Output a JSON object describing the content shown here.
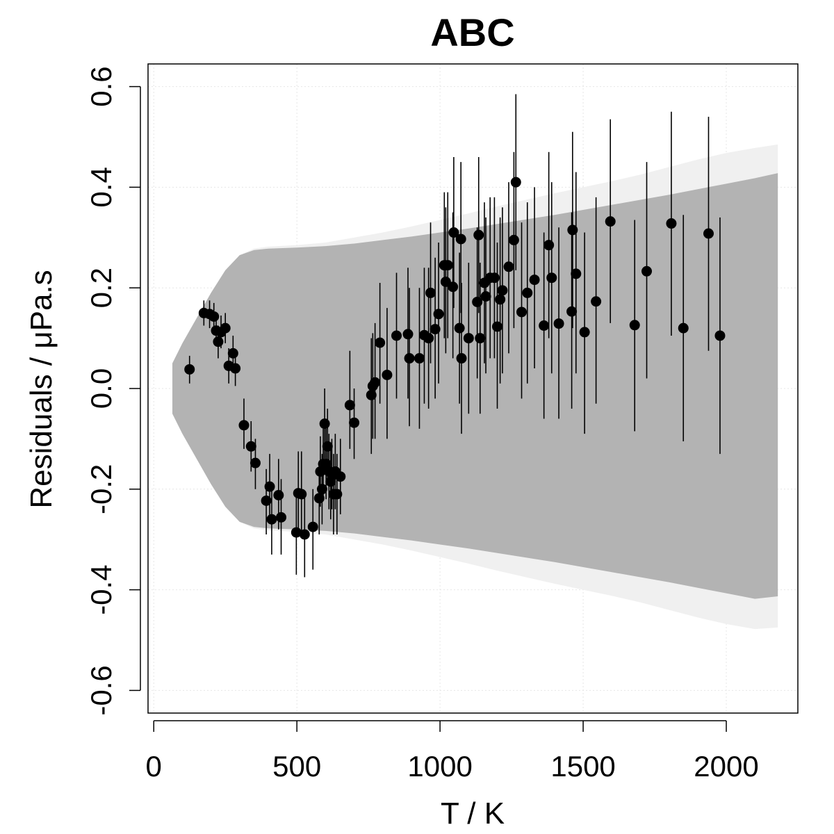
{
  "chart_data": {
    "type": "scatter",
    "title": "ABC",
    "xlabel": "T / K",
    "ylabel": "Residuals / μPa.s",
    "xlim": [
      -20,
      2250
    ],
    "ylim": [
      -0.645,
      0.645
    ],
    "x_ticks": [
      0,
      500,
      1000,
      1500,
      2000
    ],
    "x_tick_labels": [
      "0",
      "500",
      "1000",
      "1500",
      "2000"
    ],
    "y_ticks": [
      -0.6,
      -0.4,
      -0.2,
      0.0,
      0.2,
      0.4,
      0.6
    ],
    "y_tick_labels": [
      "-0.6",
      "-0.4",
      "-0.2",
      "0.0",
      "0.2",
      "0.4",
      "0.6"
    ],
    "grid": true,
    "colors": {
      "inner_band": "#b3b3b3",
      "outer_band": "#f0f0f0",
      "points": "#000000",
      "grid": "#e6e6e6"
    },
    "bands": {
      "x": [
        65,
        100,
        150,
        200,
        250,
        300,
        350,
        400,
        500,
        600,
        700,
        800,
        900,
        1000,
        1100,
        1200,
        1300,
        1400,
        1500,
        1600,
        1700,
        1800,
        1900,
        2000,
        2100,
        2180
      ],
      "inner_upper": [
        0.05,
        0.09,
        0.14,
        0.19,
        0.235,
        0.265,
        0.275,
        0.278,
        0.28,
        0.283,
        0.288,
        0.295,
        0.302,
        0.31,
        0.318,
        0.327,
        0.336,
        0.345,
        0.355,
        0.365,
        0.375,
        0.385,
        0.396,
        0.407,
        0.418,
        0.428
      ],
      "inner_lower": [
        -0.05,
        -0.09,
        -0.14,
        -0.19,
        -0.235,
        -0.265,
        -0.275,
        -0.278,
        -0.28,
        -0.283,
        -0.288,
        -0.295,
        -0.302,
        -0.31,
        -0.318,
        -0.327,
        -0.336,
        -0.345,
        -0.355,
        -0.365,
        -0.375,
        -0.385,
        -0.396,
        -0.407,
        -0.418,
        -0.413
      ],
      "outer_upper": [
        0.05,
        0.09,
        0.14,
        0.19,
        0.235,
        0.265,
        0.278,
        0.282,
        0.285,
        0.29,
        0.3,
        0.31,
        0.322,
        0.335,
        0.348,
        0.362,
        0.375,
        0.388,
        0.4,
        0.412,
        0.425,
        0.44,
        0.455,
        0.468,
        0.478,
        0.485
      ],
      "outer_lower": [
        -0.05,
        -0.09,
        -0.14,
        -0.19,
        -0.235,
        -0.265,
        -0.278,
        -0.282,
        -0.285,
        -0.29,
        -0.3,
        -0.31,
        -0.322,
        -0.335,
        -0.348,
        -0.362,
        -0.375,
        -0.388,
        -0.4,
        -0.412,
        -0.425,
        -0.44,
        -0.455,
        -0.468,
        -0.478,
        -0.475
      ]
    },
    "points": [
      {
        "x": 125,
        "y": 0.038,
        "ymin": 0.01,
        "ymax": 0.065
      },
      {
        "x": 175,
        "y": 0.15,
        "ymin": 0.125,
        "ymax": 0.175
      },
      {
        "x": 195,
        "y": 0.148,
        "ymin": 0.12,
        "ymax": 0.175
      },
      {
        "x": 210,
        "y": 0.143,
        "ymin": 0.115,
        "ymax": 0.17
      },
      {
        "x": 218,
        "y": 0.115,
        "ymin": 0.085,
        "ymax": 0.145
      },
      {
        "x": 225,
        "y": 0.093,
        "ymin": 0.06,
        "ymax": 0.125
      },
      {
        "x": 235,
        "y": 0.112,
        "ymin": 0.08,
        "ymax": 0.145
      },
      {
        "x": 250,
        "y": 0.12,
        "ymin": 0.09,
        "ymax": 0.15
      },
      {
        "x": 262,
        "y": 0.045,
        "ymin": 0.01,
        "ymax": 0.08
      },
      {
        "x": 277,
        "y": 0.07,
        "ymin": 0.035,
        "ymax": 0.105
      },
      {
        "x": 285,
        "y": 0.04,
        "ymin": 0.005,
        "ymax": 0.075
      },
      {
        "x": 315,
        "y": -0.073,
        "ymin": -0.12,
        "ymax": -0.02
      },
      {
        "x": 340,
        "y": -0.115,
        "ymin": -0.165,
        "ymax": -0.065
      },
      {
        "x": 355,
        "y": -0.148,
        "ymin": -0.2,
        "ymax": -0.1
      },
      {
        "x": 393,
        "y": -0.223,
        "ymin": -0.29,
        "ymax": -0.16
      },
      {
        "x": 405,
        "y": -0.195,
        "ymin": -0.26,
        "ymax": -0.13
      },
      {
        "x": 412,
        "y": -0.26,
        "ymin": -0.33,
        "ymax": -0.19
      },
      {
        "x": 436,
        "y": -0.212,
        "ymin": -0.28,
        "ymax": -0.14
      },
      {
        "x": 445,
        "y": -0.256,
        "ymin": -0.33,
        "ymax": -0.18
      },
      {
        "x": 498,
        "y": -0.286,
        "ymin": -0.37,
        "ymax": -0.21
      },
      {
        "x": 505,
        "y": -0.208,
        "ymin": -0.29,
        "ymax": -0.125
      },
      {
        "x": 516,
        "y": -0.21,
        "ymin": -0.29,
        "ymax": -0.125
      },
      {
        "x": 527,
        "y": -0.29,
        "ymin": -0.375,
        "ymax": -0.21
      },
      {
        "x": 556,
        "y": -0.275,
        "ymin": -0.36,
        "ymax": -0.2
      },
      {
        "x": 578,
        "y": -0.218,
        "ymin": -0.29,
        "ymax": -0.15
      },
      {
        "x": 582,
        "y": -0.165,
        "ymin": -0.235,
        "ymax": -0.095
      },
      {
        "x": 588,
        "y": -0.2,
        "ymin": -0.27,
        "ymax": -0.13
      },
      {
        "x": 592,
        "y": -0.15,
        "ymin": -0.22,
        "ymax": -0.08
      },
      {
        "x": 597,
        "y": -0.07,
        "ymin": -0.14,
        "ymax": 0.0
      },
      {
        "x": 602,
        "y": -0.15,
        "ymin": -0.22,
        "ymax": -0.08
      },
      {
        "x": 607,
        "y": -0.115,
        "ymin": -0.19,
        "ymax": -0.04
      },
      {
        "x": 612,
        "y": -0.165,
        "ymin": -0.24,
        "ymax": -0.09
      },
      {
        "x": 618,
        "y": -0.185,
        "ymin": -0.26,
        "ymax": -0.11
      },
      {
        "x": 622,
        "y": -0.17,
        "ymin": -0.24,
        "ymax": -0.1
      },
      {
        "x": 628,
        "y": -0.21,
        "ymin": -0.29,
        "ymax": -0.13
      },
      {
        "x": 634,
        "y": -0.165,
        "ymin": -0.24,
        "ymax": -0.09
      },
      {
        "x": 640,
        "y": -0.21,
        "ymin": -0.29,
        "ymax": -0.13
      },
      {
        "x": 652,
        "y": -0.175,
        "ymin": -0.25,
        "ymax": -0.1
      },
      {
        "x": 685,
        "y": -0.033,
        "ymin": -0.12,
        "ymax": 0.075
      },
      {
        "x": 700,
        "y": -0.068,
        "ymin": -0.14,
        "ymax": 0.0
      },
      {
        "x": 760,
        "y": -0.013,
        "ymin": -0.13,
        "ymax": 0.1
      },
      {
        "x": 765,
        "y": 0.005,
        "ymin": -0.1,
        "ymax": 0.11
      },
      {
        "x": 773,
        "y": 0.012,
        "ymin": -0.1,
        "ymax": 0.13
      },
      {
        "x": 790,
        "y": 0.091,
        "ymin": -0.03,
        "ymax": 0.21
      },
      {
        "x": 815,
        "y": 0.027,
        "ymin": -0.1,
        "ymax": 0.16
      },
      {
        "x": 848,
        "y": 0.105,
        "ymin": -0.02,
        "ymax": 0.23
      },
      {
        "x": 888,
        "y": 0.108,
        "ymin": -0.02,
        "ymax": 0.24
      },
      {
        "x": 893,
        "y": 0.06,
        "ymin": -0.075,
        "ymax": 0.2
      },
      {
        "x": 928,
        "y": 0.06,
        "ymin": -0.08,
        "ymax": 0.2
      },
      {
        "x": 945,
        "y": 0.106,
        "ymin": -0.03,
        "ymax": 0.24
      },
      {
        "x": 960,
        "y": 0.1,
        "ymin": -0.04,
        "ymax": 0.24
      },
      {
        "x": 967,
        "y": 0.19,
        "ymin": 0.05,
        "ymax": 0.33
      },
      {
        "x": 983,
        "y": 0.118,
        "ymin": -0.02,
        "ymax": 0.26
      },
      {
        "x": 995,
        "y": 0.148,
        "ymin": 0.01,
        "ymax": 0.29
      },
      {
        "x": 1015,
        "y": 0.245,
        "ymin": 0.1,
        "ymax": 0.39
      },
      {
        "x": 1020,
        "y": 0.212,
        "ymin": 0.07,
        "ymax": 0.36
      },
      {
        "x": 1027,
        "y": 0.245,
        "ymin": 0.1,
        "ymax": 0.39
      },
      {
        "x": 1045,
        "y": 0.202,
        "ymin": 0.06,
        "ymax": 0.35
      },
      {
        "x": 1048,
        "y": 0.31,
        "ymin": 0.16,
        "ymax": 0.46
      },
      {
        "x": 1068,
        "y": 0.12,
        "ymin": -0.03,
        "ymax": 0.27
      },
      {
        "x": 1073,
        "y": 0.297,
        "ymin": 0.15,
        "ymax": 0.45
      },
      {
        "x": 1075,
        "y": 0.06,
        "ymin": -0.09,
        "ymax": 0.21
      },
      {
        "x": 1100,
        "y": 0.1,
        "ymin": -0.05,
        "ymax": 0.25
      },
      {
        "x": 1130,
        "y": 0.172,
        "ymin": 0.02,
        "ymax": 0.32
      },
      {
        "x": 1135,
        "y": 0.305,
        "ymin": 0.15,
        "ymax": 0.46
      },
      {
        "x": 1140,
        "y": 0.1,
        "ymin": -0.05,
        "ymax": 0.25
      },
      {
        "x": 1155,
        "y": 0.21,
        "ymin": 0.05,
        "ymax": 0.37
      },
      {
        "x": 1160,
        "y": 0.183,
        "ymin": 0.03,
        "ymax": 0.34
      },
      {
        "x": 1175,
        "y": 0.22,
        "ymin": 0.06,
        "ymax": 0.38
      },
      {
        "x": 1190,
        "y": 0.22,
        "ymin": 0.06,
        "ymax": 0.38
      },
      {
        "x": 1200,
        "y": 0.123,
        "ymin": -0.04,
        "ymax": 0.29
      },
      {
        "x": 1210,
        "y": 0.177,
        "ymin": 0.01,
        "ymax": 0.34
      },
      {
        "x": 1218,
        "y": 0.195,
        "ymin": 0.03,
        "ymax": 0.36
      },
      {
        "x": 1240,
        "y": 0.242,
        "ymin": 0.07,
        "ymax": 0.41
      },
      {
        "x": 1258,
        "y": 0.295,
        "ymin": 0.12,
        "ymax": 0.47
      },
      {
        "x": 1265,
        "y": 0.41,
        "ymin": 0.235,
        "ymax": 0.585
      },
      {
        "x": 1285,
        "y": 0.152,
        "ymin": -0.02,
        "ymax": 0.33
      },
      {
        "x": 1305,
        "y": 0.19,
        "ymin": 0.01,
        "ymax": 0.37
      },
      {
        "x": 1330,
        "y": 0.216,
        "ymin": 0.04,
        "ymax": 0.4
      },
      {
        "x": 1363,
        "y": 0.125,
        "ymin": -0.06,
        "ymax": 0.31
      },
      {
        "x": 1380,
        "y": 0.285,
        "ymin": 0.1,
        "ymax": 0.47
      },
      {
        "x": 1390,
        "y": 0.22,
        "ymin": 0.03,
        "ymax": 0.41
      },
      {
        "x": 1415,
        "y": 0.129,
        "ymin": -0.06,
        "ymax": 0.32
      },
      {
        "x": 1460,
        "y": 0.153,
        "ymin": -0.04,
        "ymax": 0.35
      },
      {
        "x": 1463,
        "y": 0.315,
        "ymin": 0.12,
        "ymax": 0.51
      },
      {
        "x": 1475,
        "y": 0.228,
        "ymin": 0.03,
        "ymax": 0.43
      },
      {
        "x": 1505,
        "y": 0.112,
        "ymin": -0.09,
        "ymax": 0.31
      },
      {
        "x": 1545,
        "y": 0.173,
        "ymin": -0.03,
        "ymax": 0.38
      },
      {
        "x": 1595,
        "y": 0.332,
        "ymin": 0.13,
        "ymax": 0.535
      },
      {
        "x": 1680,
        "y": 0.126,
        "ymin": -0.085,
        "ymax": 0.335
      },
      {
        "x": 1722,
        "y": 0.233,
        "ymin": 0.02,
        "ymax": 0.45
      },
      {
        "x": 1808,
        "y": 0.328,
        "ymin": 0.105,
        "ymax": 0.55
      },
      {
        "x": 1850,
        "y": 0.12,
        "ymin": -0.105,
        "ymax": 0.345
      },
      {
        "x": 1938,
        "y": 0.308,
        "ymin": 0.075,
        "ymax": 0.54
      },
      {
        "x": 1978,
        "y": 0.105,
        "ymin": -0.13,
        "ymax": 0.34
      }
    ]
  }
}
